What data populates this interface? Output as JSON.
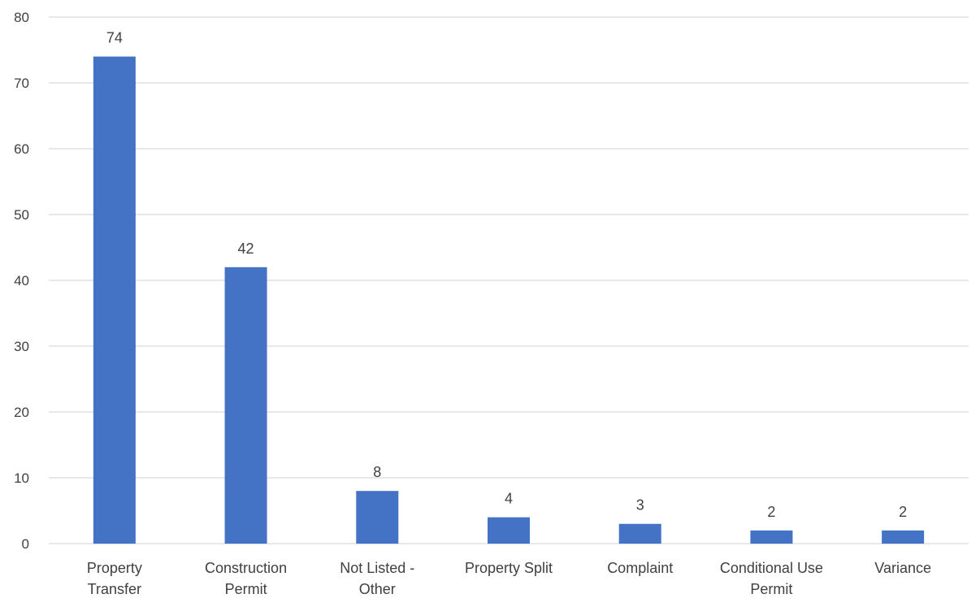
{
  "chart_data": {
    "type": "bar",
    "categories": [
      [
        "Property",
        "Transfer"
      ],
      [
        "Construction",
        "Permit"
      ],
      [
        "Not Listed -",
        "Other"
      ],
      [
        "Property Split"
      ],
      [
        "Complaint"
      ],
      [
        "Conditional Use",
        "Permit"
      ],
      [
        "Variance"
      ]
    ],
    "values": [
      74,
      42,
      8,
      4,
      3,
      2,
      2
    ],
    "data_labels": [
      "74",
      "42",
      "8",
      "4",
      "3",
      "2",
      "2"
    ],
    "ylim": [
      0,
      80
    ],
    "yticks": [
      0,
      10,
      20,
      30,
      40,
      50,
      60,
      70,
      80
    ],
    "grid": true,
    "legend": "none",
    "bar_color": "#4472C4",
    "grid_color": "#d9d9d9",
    "text_color": "#404040"
  }
}
